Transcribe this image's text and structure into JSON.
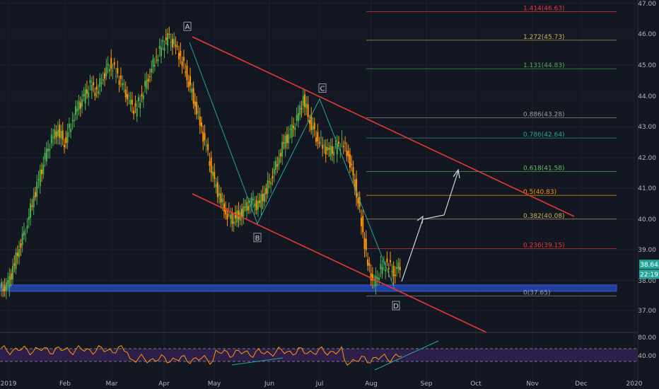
{
  "chart_data": {
    "type": "candlestick",
    "price_axis": {
      "min": 36.5,
      "max": 47.0,
      "ticks": [
        "37.00",
        "38.00",
        "39.00",
        "40.00",
        "41.00",
        "42.00",
        "43.00",
        "44.00",
        "45.00",
        "46.00",
        "47.00"
      ]
    },
    "time_axis": {
      "labels": [
        "2019",
        "Feb",
        "Mar",
        "Apr",
        "May",
        "Jun",
        "Jul",
        "Aug",
        "Sep",
        "Oct",
        "Nov",
        "Dec",
        "2020"
      ]
    },
    "last_price": {
      "value": "38.64",
      "countdown": "22:19",
      "color": "#26a69a"
    },
    "support_zone": {
      "from": 37.8,
      "to": 38.0,
      "color": "#1e3f9c"
    },
    "fib_levels": [
      {
        "label": "1.414(46.63)",
        "price": 46.63,
        "color": "#e53935"
      },
      {
        "label": "1.272(45.73)",
        "price": 45.73,
        "color": "#c9b458"
      },
      {
        "label": "1.131(44.83)",
        "price": 44.83,
        "color": "#4caf50"
      },
      {
        "label": "0.886(43.28)",
        "price": 43.28,
        "color": "#9e9e9e"
      },
      {
        "label": "0.786(42.64)",
        "price": 42.64,
        "color": "#26a69a"
      },
      {
        "label": "0.618(41.58)",
        "price": 41.58,
        "color": "#66bb6a"
      },
      {
        "label": "0.5(40.83)",
        "price": 40.83,
        "color": "#ff9800"
      },
      {
        "label": "0.382(40.08)",
        "price": 40.08,
        "color": "#c9b458"
      },
      {
        "label": "0.236(39.15)",
        "price": 39.15,
        "color": "#e53935"
      },
      {
        "label": "0(37.65)",
        "price": 37.65,
        "color": "#9e9e9e"
      }
    ],
    "wave_points": [
      {
        "label": "A",
        "price": 45.9
      },
      {
        "label": "B",
        "price": 39.9
      },
      {
        "label": "C",
        "price": 43.95
      },
      {
        "label": "D",
        "price": 37.75
      }
    ],
    "series_close": [
      37.9,
      38.5,
      39.2,
      39.8,
      40.6,
      41.3,
      42.0,
      42.6,
      42.9,
      42.5,
      43.1,
      43.6,
      43.9,
      44.3,
      44.1,
      44.6,
      45.0,
      44.7,
      44.3,
      43.8,
      43.5,
      44.0,
      44.6,
      45.1,
      45.5,
      45.8,
      45.6,
      45.2,
      44.6,
      43.9,
      43.1,
      42.3,
      41.4,
      40.8,
      40.3,
      40.1,
      40.2,
      40.4,
      40.6,
      40.5,
      40.9,
      41.4,
      41.9,
      42.5,
      42.8,
      43.2,
      43.9,
      43.2,
      42.7,
      42.4,
      42.2,
      42.3,
      42.5,
      42.1,
      41.2,
      40.0,
      38.6,
      38.0,
      38.5,
      38.7,
      38.4,
      38.64
    ],
    "rsi": {
      "levels": [
        "80.00",
        "40.00"
      ],
      "band": [
        35,
        65
      ],
      "min": 0,
      "max": 100
    }
  }
}
